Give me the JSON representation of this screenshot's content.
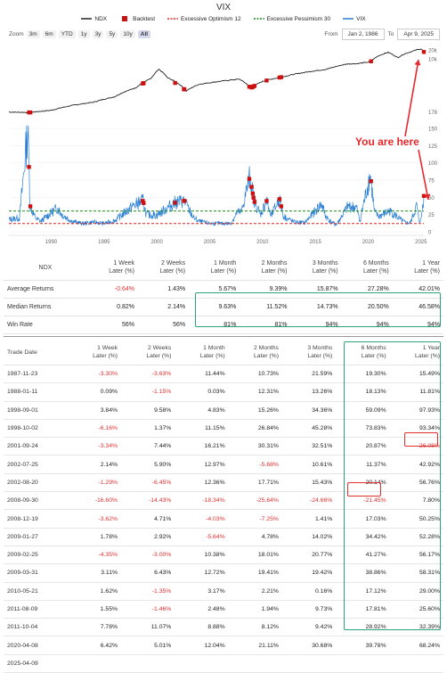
{
  "chart_data": {
    "type": "line",
    "title": "VIX",
    "legend": [
      {
        "name": "NDX",
        "color": "#222222",
        "marker": "line"
      },
      {
        "name": "Backtest",
        "color": "#cc1111",
        "marker": "square"
      },
      {
        "name": "Excessive Optimism 12",
        "color": "#e02020",
        "marker": "dashed"
      },
      {
        "name": "Excessive Pessimism 30",
        "color": "#1a8a1a",
        "marker": "dashed"
      },
      {
        "name": "VIX",
        "color": "#2a7fd4",
        "marker": "line"
      }
    ],
    "legend_position": "top",
    "x_ticks": [
      "1990",
      "1995",
      "2000",
      "2005",
      "2010",
      "2015",
      "2020",
      "2025"
    ],
    "xlim": [
      1986.0,
      2025.27
    ],
    "upper_panel": {
      "series_name": "NDX",
      "scale": "log",
      "y_tick_labels": [
        "20k",
        "10k",
        "178"
      ],
      "ndx_points": [
        [
          1986.0,
          175
        ],
        [
          1988.0,
          170
        ],
        [
          1990.0,
          200
        ],
        [
          1992.0,
          290
        ],
        [
          1994.0,
          370
        ],
        [
          1996.0,
          560
        ],
        [
          1998.0,
          1100
        ],
        [
          1999.5,
          2300
        ],
        [
          2000.2,
          4500
        ],
        [
          2001.0,
          2400
        ],
        [
          2002.8,
          880
        ],
        [
          2004.0,
          1450
        ],
        [
          2007.8,
          2150
        ],
        [
          2008.9,
          1100
        ],
        [
          2010.0,
          1800
        ],
        [
          2012.0,
          2600
        ],
        [
          2014.0,
          3600
        ],
        [
          2016.0,
          4500
        ],
        [
          2018.0,
          6800
        ],
        [
          2019.0,
          7000
        ],
        [
          2020.2,
          8000
        ],
        [
          2021.0,
          12800
        ],
        [
          2021.9,
          16500
        ],
        [
          2022.8,
          11000
        ],
        [
          2023.5,
          15000
        ],
        [
          2024.0,
          17000
        ],
        [
          2024.6,
          20000
        ],
        [
          2025.0,
          21500
        ],
        [
          2025.27,
          17000
        ]
      ]
    },
    "lower_panel": {
      "series_name": "VIX",
      "y_tick_labels": [
        "150",
        "125",
        "100",
        "75",
        "50",
        "25",
        "0"
      ],
      "ylim": [
        0,
        150
      ],
      "excessive_optimism": 12,
      "excessive_pessimism": 30,
      "vix_points": [
        [
          1986.0,
          18
        ],
        [
          1987.0,
          20
        ],
        [
          1987.8,
          150
        ],
        [
          1988.0,
          38
        ],
        [
          1988.5,
          20
        ],
        [
          1989.0,
          15
        ],
        [
          1990.6,
          35
        ],
        [
          1991.0,
          25
        ],
        [
          1992.0,
          15
        ],
        [
          1993.0,
          12
        ],
        [
          1994.0,
          14
        ],
        [
          1995.0,
          12
        ],
        [
          1996.0,
          16
        ],
        [
          1997.8,
          38
        ],
        [
          1998.7,
          45
        ],
        [
          1999.0,
          25
        ],
        [
          2000.0,
          24
        ],
        [
          2001.7,
          42
        ],
        [
          2002.6,
          45
        ],
        [
          2003.0,
          33
        ],
        [
          2003.5,
          20
        ],
        [
          2004.0,
          15
        ],
        [
          2005.0,
          12
        ],
        [
          2006.0,
          12
        ],
        [
          2007.0,
          12
        ],
        [
          2007.6,
          28
        ],
        [
          2008.0,
          28
        ],
        [
          2008.8,
          80
        ],
        [
          2009.2,
          45
        ],
        [
          2009.8,
          25
        ],
        [
          2010.4,
          45
        ],
        [
          2010.8,
          22
        ],
        [
          2011.6,
          48
        ],
        [
          2012.0,
          22
        ],
        [
          2013.0,
          14
        ],
        [
          2014.0,
          13
        ],
        [
          2015.6,
          40
        ],
        [
          2016.0,
          22
        ],
        [
          2016.5,
          14
        ],
        [
          2017.0,
          10
        ],
        [
          2018.1,
          37
        ],
        [
          2018.9,
          35
        ],
        [
          2019.2,
          15
        ],
        [
          2020.2,
          83
        ],
        [
          2020.6,
          28
        ],
        [
          2021.0,
          22
        ],
        [
          2022.0,
          30
        ],
        [
          2022.5,
          25
        ],
        [
          2023.0,
          18
        ],
        [
          2023.5,
          13
        ],
        [
          2024.0,
          13
        ],
        [
          2024.6,
          38
        ],
        [
          2024.8,
          16
        ],
        [
          2025.0,
          17
        ],
        [
          2025.27,
          52
        ]
      ],
      "backtest_dates": [
        1987.9,
        1988.03,
        1998.67,
        1998.75,
        2001.73,
        2002.56,
        2002.61,
        2008.75,
        2008.97,
        2009.08,
        2009.15,
        2009.25,
        2010.39,
        2011.61,
        2011.77,
        2020.27,
        2025.27
      ]
    }
  },
  "annotation": "You are here",
  "zoom": {
    "label": "Zoom",
    "buttons": [
      "3m",
      "6m",
      "YTD",
      "1y",
      "3y",
      "5y",
      "10y",
      "All"
    ],
    "active": "All",
    "from_label": "From",
    "from_value": "Jan 2, 1986",
    "to_label": "To",
    "to_value": "Apr 9, 2025"
  },
  "summary_table": {
    "headers": [
      "NDX",
      "1 Week\nLater (%)",
      "2 Weeks\nLater (%)",
      "1 Month\nLater (%)",
      "2 Months\nLater (%)",
      "3 Months\nLater (%)",
      "6 Months\nLater (%)",
      "1 Year\nLater (%)"
    ],
    "rows": [
      {
        "label": "Average Returns",
        "values": [
          "-0.64%",
          "1.43%",
          "5.67%",
          "9.39%",
          "15.87%",
          "27.28%",
          "42.01%"
        ]
      },
      {
        "label": "Median Returns",
        "values": [
          "0.82%",
          "2.14%",
          "9.63%",
          "11.52%",
          "14.73%",
          "20.50%",
          "46.58%"
        ]
      },
      {
        "label": "Win Rate",
        "values": [
          "56%",
          "56%",
          "81%",
          "81%",
          "94%",
          "94%",
          "94%"
        ]
      }
    ]
  },
  "detail_table": {
    "headers": [
      "Trade Date",
      "1 Week\nLater (%)",
      "2 Weeks\nLater (%)",
      "1 Month\nLater (%)",
      "2 Months\nLater (%)",
      "3 Months\nLater (%)",
      "6 Months\nLater (%)",
      "1 Year\nLater (%)"
    ],
    "rows": [
      {
        "date": "1987-11-23",
        "values": [
          "-3.30%",
          "-3.63%",
          "11.44%",
          "10.73%",
          "21.59%",
          "19.30%",
          "15.49%"
        ]
      },
      {
        "date": "1988-01-11",
        "values": [
          "0.09%",
          "-1.15%",
          "0.03%",
          "12.31%",
          "13.26%",
          "18.13%",
          "11.81%"
        ]
      },
      {
        "date": "1998-09-01",
        "values": [
          "3.84%",
          "9.58%",
          "4.83%",
          "15.26%",
          "34.36%",
          "59.09%",
          "97.93%"
        ]
      },
      {
        "date": "1998-10-02",
        "values": [
          "-6.16%",
          "1.37%",
          "11.15%",
          "26.84%",
          "45.28%",
          "73.83%",
          "93.34%"
        ]
      },
      {
        "date": "2001-09-24",
        "values": [
          "-3.34%",
          "7.44%",
          "16.21%",
          "30.31%",
          "32.51%",
          "20.87%",
          "-26.08%"
        ]
      },
      {
        "date": "2002-07-25",
        "values": [
          "2.14%",
          "5.90%",
          "12.97%",
          "-5.68%",
          "10.61%",
          "11.37%",
          "42.92%"
        ]
      },
      {
        "date": "2002-08-20",
        "values": [
          "-1.29%",
          "-6.45%",
          "12.36%",
          "17.71%",
          "15.43%",
          "20.14%",
          "56.76%"
        ]
      },
      {
        "date": "2008-09-30",
        "values": [
          "-16.60%",
          "-14.43%",
          "-18.34%",
          "-25.64%",
          "-24.66%",
          "-21.45%",
          "7.80%"
        ]
      },
      {
        "date": "2008-12-19",
        "values": [
          "-3.62%",
          "4.71%",
          "-4.03%",
          "-7.25%",
          "1.41%",
          "17.03%",
          "50.25%"
        ]
      },
      {
        "date": "2009-01-27",
        "values": [
          "1.78%",
          "2.92%",
          "-5.64%",
          "4.78%",
          "14.02%",
          "34.42%",
          "52.28%"
        ]
      },
      {
        "date": "2009-02-25",
        "values": [
          "-4.35%",
          "-3.00%",
          "10.38%",
          "18.01%",
          "20.77%",
          "41.27%",
          "56.17%"
        ]
      },
      {
        "date": "2009-03-31",
        "values": [
          "3.11%",
          "6.43%",
          "12.72%",
          "19.41%",
          "19.42%",
          "38.86%",
          "58.31%"
        ]
      },
      {
        "date": "2010-05-21",
        "values": [
          "1.62%",
          "-1.35%",
          "3.17%",
          "2.21%",
          "0.16%",
          "17.12%",
          "29.00%"
        ]
      },
      {
        "date": "2011-08-09",
        "values": [
          "1.55%",
          "-1.46%",
          "2.48%",
          "1.94%",
          "9.73%",
          "17.81%",
          "25.60%"
        ]
      },
      {
        "date": "2011-10-04",
        "values": [
          "7.78%",
          "11.07%",
          "8.88%",
          "8.12%",
          "9.42%",
          "28.92%",
          "32.39%"
        ]
      },
      {
        "date": "2020-04-08",
        "values": [
          "6.42%",
          "5.01%",
          "12.04%",
          "21.11%",
          "30.68%",
          "39.78%",
          "68.24%"
        ]
      },
      {
        "date": "2025-04-09",
        "values": [
          "",
          "",
          "",
          "",
          "",
          "",
          ""
        ]
      }
    ]
  },
  "highlight_colors": {
    "green_box": "#2aa27a",
    "red_box": "#e03030"
  }
}
